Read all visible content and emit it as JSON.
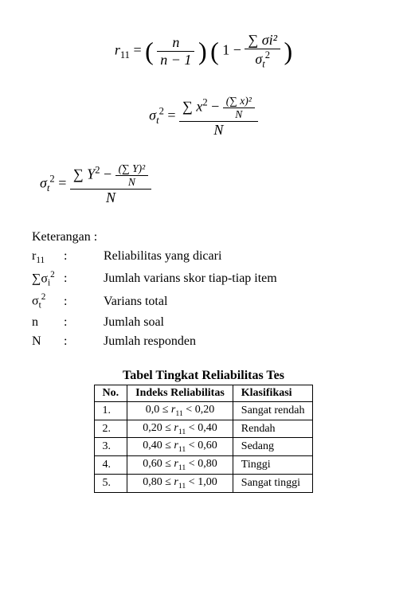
{
  "formulas": {
    "f1_lhs": "r",
    "f1_lhs_sub": "11",
    "f1_eq": " = ",
    "f1_num1": "n",
    "f1_den1": "n − 1",
    "f1_one": "1 − ",
    "f1_num2": "∑ σi²",
    "f1_den2_a": "σ",
    "f1_den2_b": "t",
    "f1_den2_c": "2",
    "f2_lhs_a": "σ",
    "f2_lhs_b": "t",
    "f2_lhs_c": "2",
    "f2_eq": " = ",
    "f2_num_a": "∑ x",
    "f2_num_b": "2",
    "f2_num_c": " − ",
    "f2_inner_num": "(∑ x)²",
    "f2_inner_den": "N",
    "f2_den": "N",
    "f3_lhs_a": "σ",
    "f3_lhs_b": "t",
    "f3_lhs_c": "2",
    "f3_eq": " = ",
    "f3_num_a": "∑ Y",
    "f3_num_b": "2",
    "f3_num_c": " − ",
    "f3_inner_num": "(∑ Y)²",
    "f3_inner_den": "N",
    "f3_den": "N"
  },
  "keterangan": {
    "title": "Keterangan :",
    "rows": [
      {
        "sym_html": "r<sub>11</sub>",
        "desc": "Reliabilitas yang dicari"
      },
      {
        "sym_html": "∑σ<sub>i</sub><sup>2</sup>",
        "desc": "Jumlah varians skor tiap-tiap item"
      },
      {
        "sym_html": "σ<sub>t</sub><sup>2</sup>",
        "desc": "Varians total"
      },
      {
        "sym_html": "n",
        "desc": "Jumlah soal"
      },
      {
        "sym_html": "N",
        "desc": "Jumlah responden"
      }
    ]
  },
  "table": {
    "title": "Tabel Tingkat Reliabilitas Tes",
    "headers": [
      "No.",
      "Indeks Reliabilitas",
      "Klasifikasi"
    ],
    "rows": [
      {
        "no": "1.",
        "range": "0,0 ≤ r₁₁ < 0,20",
        "klas": "Sangat rendah"
      },
      {
        "no": "2.",
        "range": "0,20 ≤ r₁₁ < 0,40",
        "klas": "Rendah"
      },
      {
        "no": "3.",
        "range": "0,40 ≤ r₁₁ < 0,60",
        "klas": "Sedang"
      },
      {
        "no": "4.",
        "range": "0,60 ≤ r₁₁ < 0,80",
        "klas": "Tinggi"
      },
      {
        "no": "5.",
        "range": "0,80 ≤ r₁₁ < 1,00",
        "klas": "Sangat tinggi"
      }
    ]
  },
  "style": {
    "body_fontsize": 16,
    "formula_fontsize": 18,
    "table_fontsize": 14,
    "text_color": "#000000",
    "background_color": "#ffffff",
    "border_color": "#000000"
  }
}
